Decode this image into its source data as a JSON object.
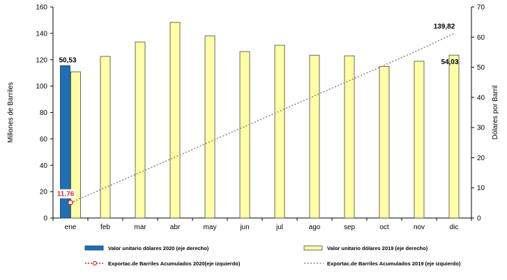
{
  "chart_data": {
    "type": "bar",
    "categories": [
      "ene",
      "feb",
      "mar",
      "abr",
      "may",
      "jun",
      "jul",
      "ago",
      "sep",
      "oct",
      "nov",
      "dic"
    ],
    "y_left": {
      "label": "Millones de Barriles",
      "range": [
        0,
        160
      ],
      "ticks": [
        0,
        20,
        40,
        60,
        80,
        100,
        120,
        140,
        160
      ]
    },
    "y_right": {
      "label": "Dólares por Barril",
      "range": [
        0,
        70
      ],
      "ticks": [
        0,
        10,
        20,
        30,
        40,
        50,
        60,
        70
      ]
    },
    "grid": false,
    "legend_position": "bottom",
    "series": [
      {
        "name": "Valor unitario dólares 2020 (eje derecho)",
        "kind": "bar",
        "axis": "right",
        "color": "#1f6fb5",
        "values": [
          50.53,
          null,
          null,
          null,
          null,
          null,
          null,
          null,
          null,
          null,
          null,
          null
        ]
      },
      {
        "name": "Valor unitario dólares 2019 (eje derecho)",
        "kind": "bar",
        "axis": "right",
        "color": "#ffffa6",
        "values": [
          48.5,
          53.6,
          58.4,
          64.9,
          60.4,
          55.2,
          57.3,
          54.0,
          53.8,
          50.3,
          52.0,
          54.03
        ]
      },
      {
        "name": "Exportac.de Barriles Acumulados 2020(eje izquierdo)",
        "kind": "line",
        "axis": "left",
        "color": "#d62728",
        "values": [
          11.76,
          null,
          null,
          null,
          null,
          null,
          null,
          null,
          null,
          null,
          null,
          null
        ]
      },
      {
        "name": "Exportac.de Barriles Acumulados 2019 (eje izquierdo)",
        "kind": "line",
        "axis": "left",
        "color": "#888888",
        "values": [
          11.5,
          23.1,
          34.6,
          46.2,
          57.8,
          69.4,
          81.0,
          92.6,
          104.2,
          115.8,
          127.5,
          139.82
        ]
      }
    ],
    "annotations": [
      {
        "text": "50,53",
        "category": "ene",
        "series": 0
      },
      {
        "text": "54,03",
        "category": "dic",
        "series": 1
      },
      {
        "text": "11.76",
        "category": "ene",
        "series": 2
      },
      {
        "text": "139,82",
        "category": "dic",
        "series": 3
      }
    ]
  }
}
